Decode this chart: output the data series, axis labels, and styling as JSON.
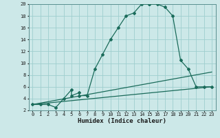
{
  "xlabel": "Humidex (Indice chaleur)",
  "bg_color": "#cce8e8",
  "grid_color": "#9ecece",
  "line_color": "#1a6b5a",
  "xlim": [
    -0.5,
    23.5
  ],
  "ylim": [
    2,
    20
  ],
  "xticks": [
    0,
    1,
    2,
    3,
    4,
    5,
    6,
    7,
    8,
    9,
    10,
    11,
    12,
    13,
    14,
    15,
    16,
    17,
    18,
    19,
    20,
    21,
    22,
    23
  ],
  "yticks": [
    2,
    4,
    6,
    8,
    10,
    12,
    14,
    16,
    18,
    20
  ],
  "series1_x": [
    0,
    1,
    2,
    3,
    4,
    5,
    5,
    6,
    6,
    7,
    8,
    9,
    10,
    11,
    12,
    13,
    14,
    15,
    15,
    16,
    17,
    18,
    19,
    20,
    21,
    22,
    23
  ],
  "series1_y": [
    3,
    3,
    3,
    2.5,
    4,
    5.5,
    4.5,
    5,
    4.5,
    4.5,
    9,
    11.5,
    14,
    16,
    18,
    18.5,
    20,
    20,
    20,
    20,
    19.5,
    18,
    10.5,
    9,
    6,
    6,
    6
  ],
  "series2_x": [
    0,
    23
  ],
  "series2_y": [
    3,
    6
  ],
  "series3_x": [
    0,
    23
  ],
  "series3_y": [
    3,
    8.5
  ],
  "marker_style": "D",
  "marker_size": 2.0,
  "line_width": 0.9,
  "xlabel_fontsize": 6.5,
  "tick_fontsize": 5.0
}
